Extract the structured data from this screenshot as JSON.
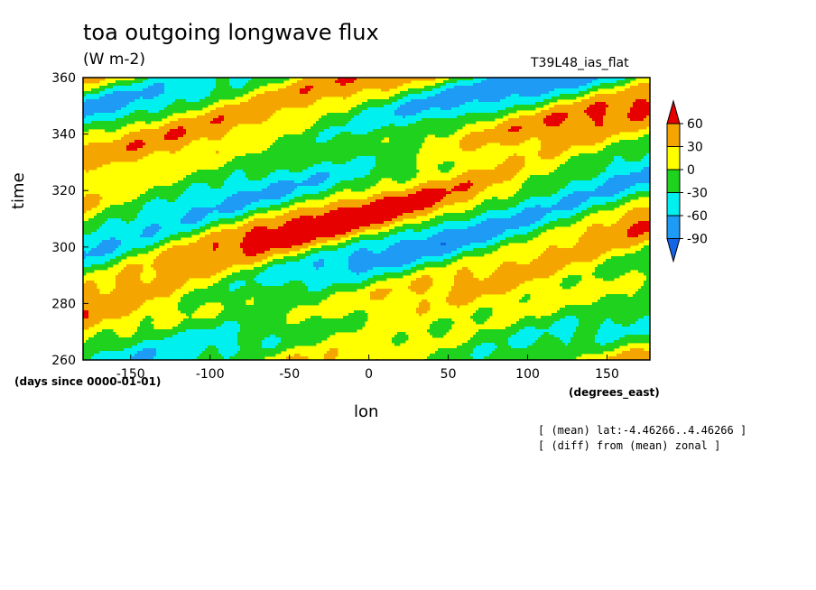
{
  "chart_data": {
    "type": "heatmap",
    "title": "toa outgoing longwave flux",
    "units": "(W m-2)",
    "run_label": "T39L48_ias_flat",
    "xlabel": "lon",
    "ylabel": "time",
    "x_units": "(degrees_east)",
    "y_units": "(days since 0000-01-01)",
    "xlim": [
      -180,
      177
    ],
    "ylim": [
      260,
      360
    ],
    "x_ticks": [
      -150,
      -100,
      -50,
      0,
      50,
      100,
      150
    ],
    "y_ticks": [
      260,
      280,
      300,
      320,
      340,
      360
    ],
    "colorbar": {
      "levels": [
        -90,
        -60,
        -30,
        0,
        30,
        60
      ],
      "labels": [
        "60",
        "30",
        "0",
        "-30",
        "-60",
        "-90"
      ],
      "colors": [
        "#1464e6",
        "#1e9bf5",
        "#00f0f0",
        "#1ed21e",
        "#ffff00",
        "#f5a500",
        "#e60000"
      ]
    },
    "notes": [
      "[ (mean) lat:-4.46266..4.46266 ]",
      "[ (diff) from (mean) zonal ]"
    ]
  }
}
